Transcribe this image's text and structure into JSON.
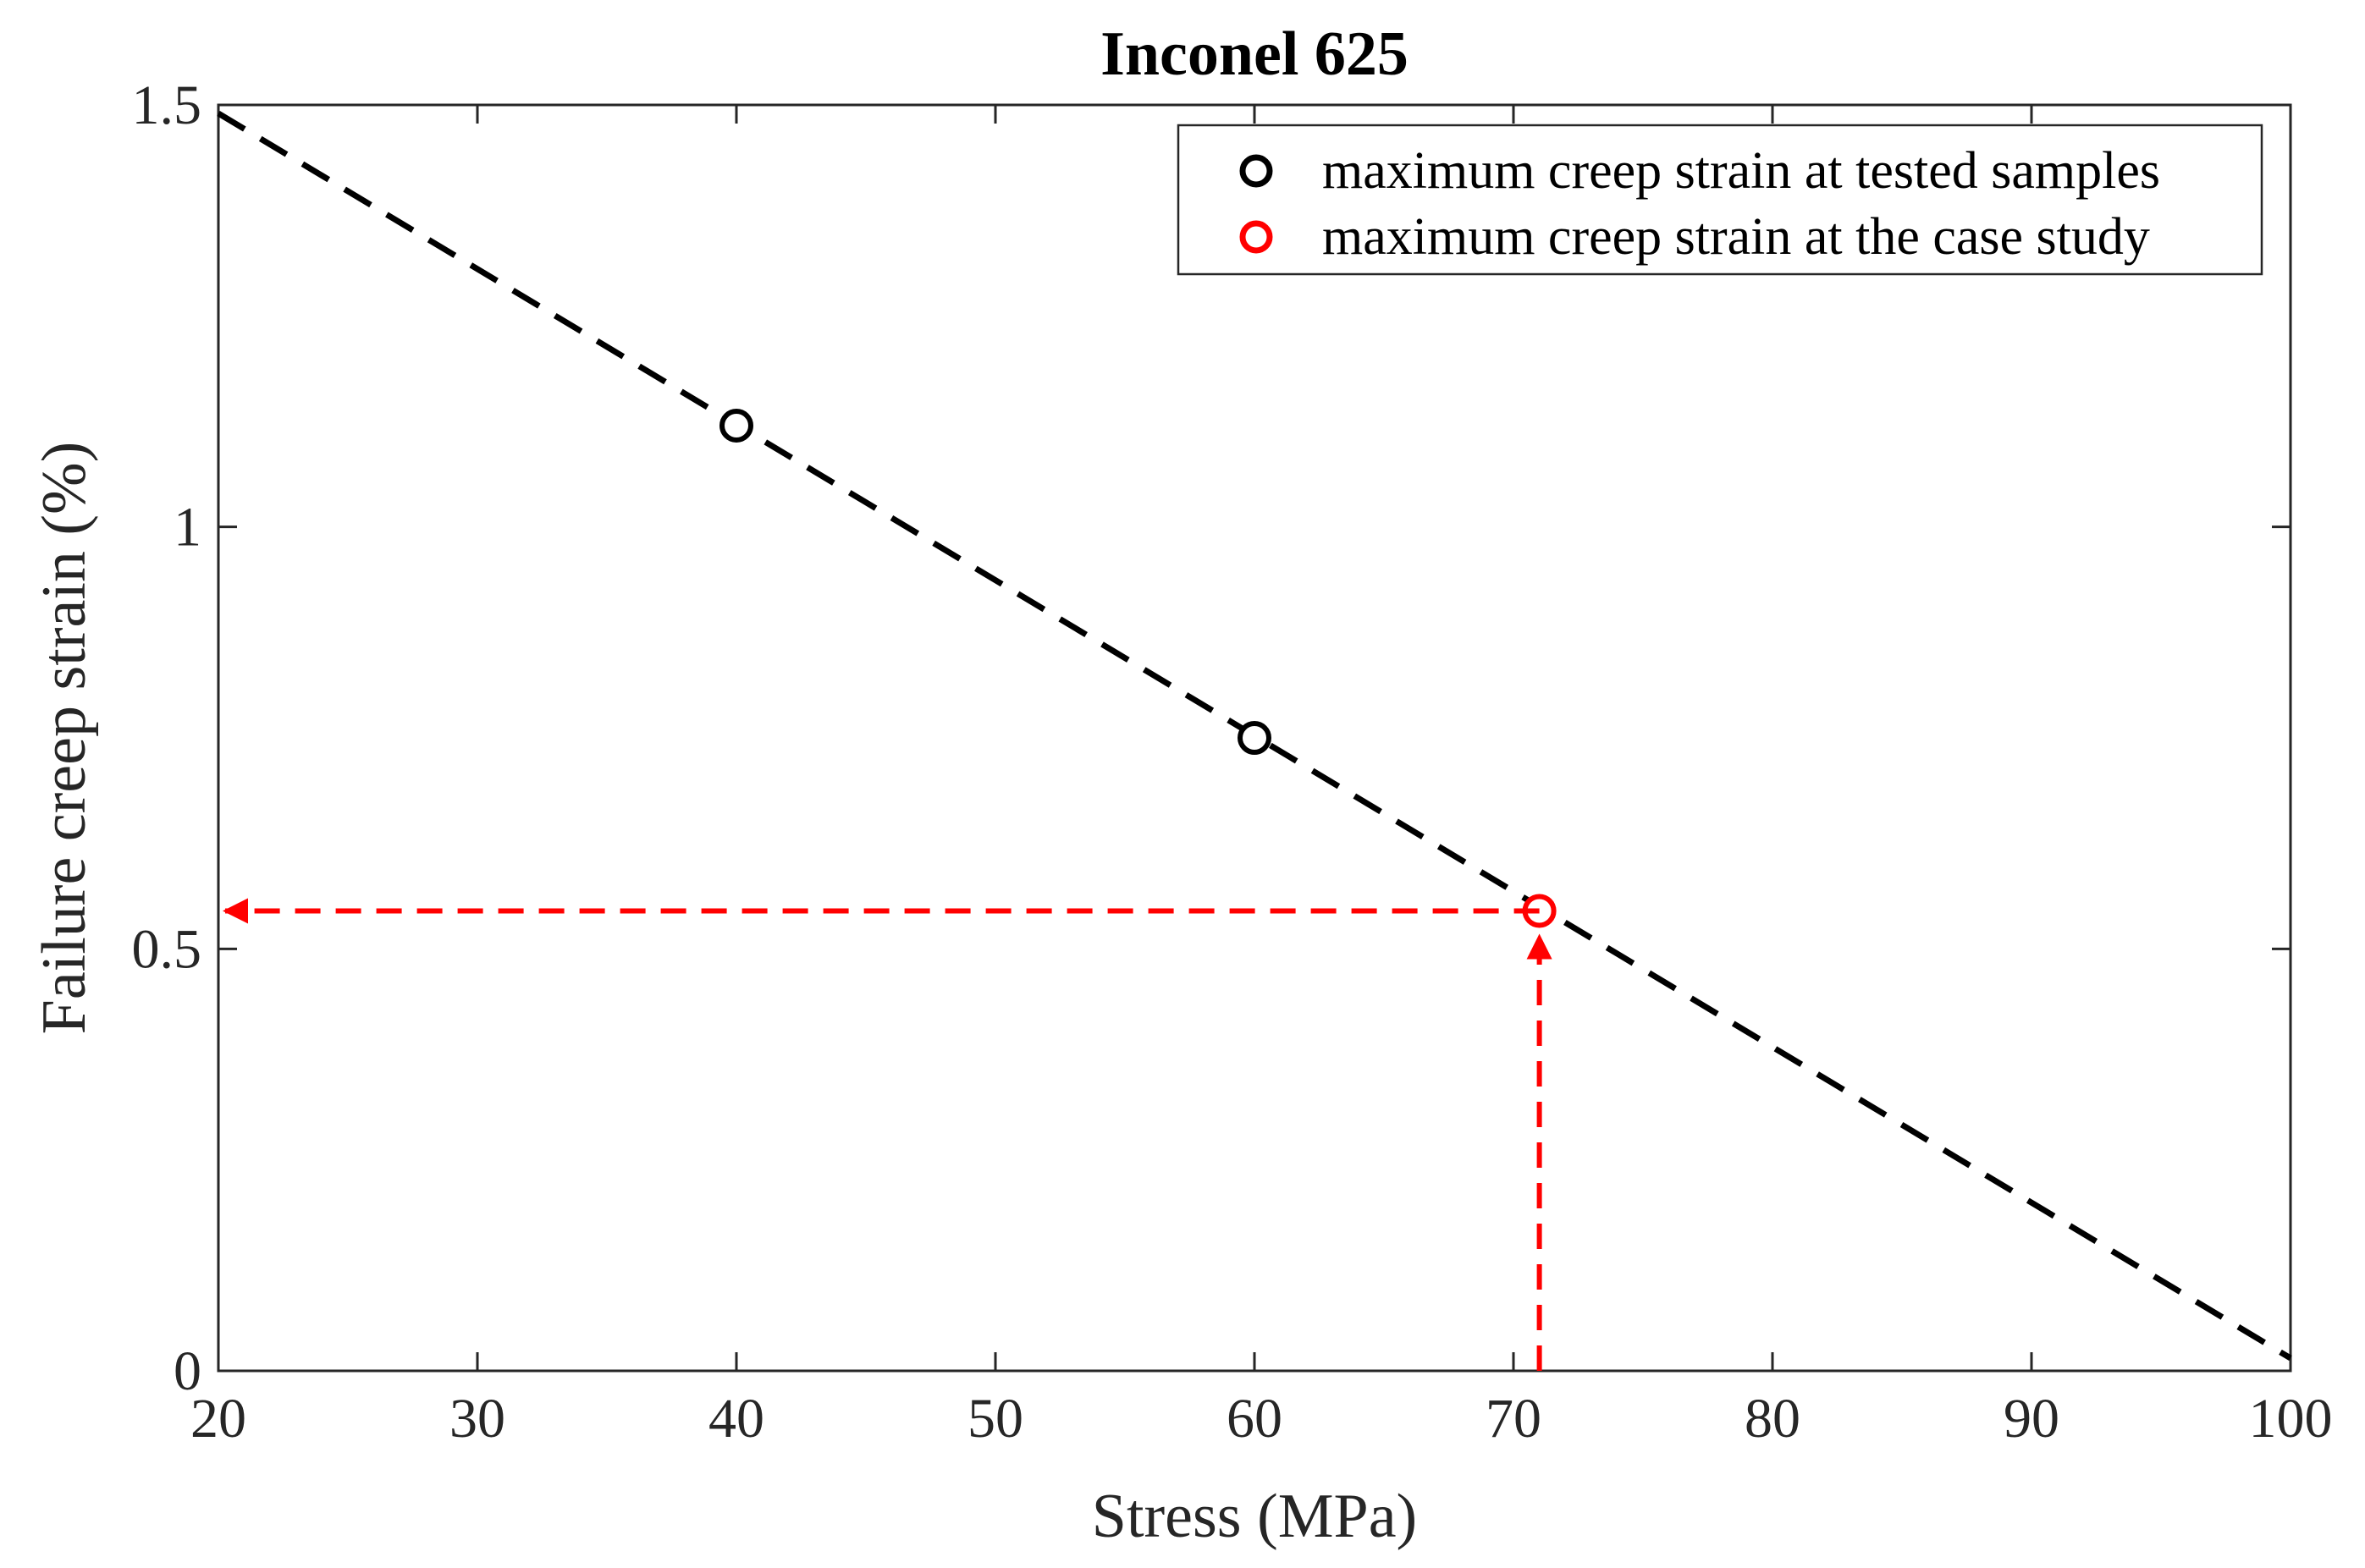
{
  "chart_data": {
    "type": "line",
    "title": "Inconel 625",
    "xlabel": "Stress (MPa)",
    "ylabel": "Failure creep strain (%)",
    "xlim": [
      20,
      100
    ],
    "ylim": [
      0,
      1.5
    ],
    "xticks": [
      20,
      30,
      40,
      50,
      60,
      70,
      80,
      90,
      100
    ],
    "yticks": [
      0,
      0.5,
      1,
      1.5
    ],
    "xtick_labels": [
      "20",
      "30",
      "40",
      "50",
      "60",
      "70",
      "80",
      "90",
      "100"
    ],
    "ytick_labels": [
      "0",
      "0.5",
      "1",
      "1.5"
    ],
    "grid": false,
    "legend_position": "top-right",
    "series": [
      {
        "name": "fit-line",
        "style": "dashed",
        "color": "#000000",
        "x": [
          20,
          100
        ],
        "y": [
          1.49,
          0.015
        ]
      },
      {
        "name": "maximum creep strain at tested samples",
        "style": "circle-markers",
        "color": "#000000",
        "x": [
          40,
          60
        ],
        "y": [
          1.12,
          0.75
        ]
      },
      {
        "name": "maximum creep strain at the case study",
        "style": "circle-markers",
        "color": "#ff0000",
        "x": [
          71
        ],
        "y": [
          0.545
        ]
      }
    ],
    "annotations": [
      {
        "type": "arrow-horizontal",
        "from": [
          71,
          0.545
        ],
        "to": [
          20,
          0.545
        ],
        "color": "#ff0000",
        "style": "dashed"
      },
      {
        "type": "arrow-vertical",
        "from": [
          71,
          0
        ],
        "to": [
          71,
          0.545
        ],
        "color": "#ff0000",
        "style": "dashed"
      }
    ],
    "legend": [
      {
        "label": "maximum creep strain at tested samples",
        "color": "#000000"
      },
      {
        "label": "maximum creep strain at the case study",
        "color": "#ff0000"
      }
    ]
  }
}
